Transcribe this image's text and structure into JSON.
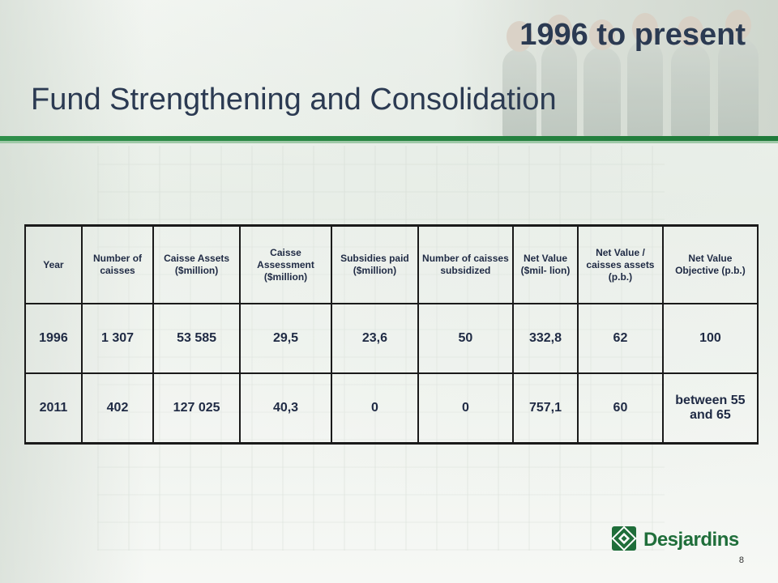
{
  "slide": {
    "period_title": "1996 to present",
    "main_title": "Fund Strengthening and Consolidation",
    "page_number": "8"
  },
  "table": {
    "headers": [
      "Year",
      "Number of caisses",
      "Caisse Assets ($million)",
      "Caisse Assessment ($million)",
      "Subsidies paid ($million)",
      "Number of caisses subsidized",
      "Net Value ($mil- lion)",
      "Net Value / caisses assets (p.b.)",
      "Net Value Objective (p.b.)"
    ],
    "rows": [
      [
        "1996",
        "1 307",
        "53 585",
        "29,5",
        "23,6",
        "50",
        "332,8",
        "62",
        "100"
      ],
      [
        "2011",
        "402",
        "127 025",
        "40,3",
        "0",
        "0",
        "757,1",
        "60",
        "between 55 and 65"
      ]
    ]
  },
  "logo": {
    "name": "Desjardins",
    "icon": "desjardins-logo-icon",
    "color": "#1f6e3a"
  },
  "colors": {
    "title": "#2b3a52",
    "accent_bar": "#2f8f4a"
  }
}
